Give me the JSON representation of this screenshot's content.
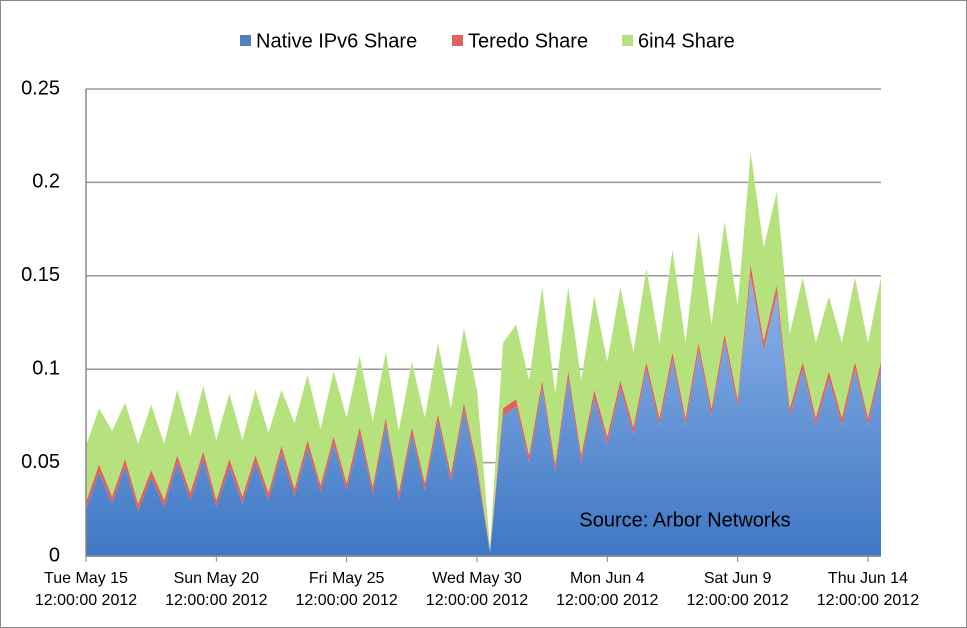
{
  "chart_data": {
    "type": "stacked_area",
    "annotation": "Source: Arbor Networks",
    "categories": [
      "Tue May 15\n12:00:00 2012",
      null,
      null,
      null,
      null,
      null,
      null,
      null,
      null,
      null,
      "Sun May 20\n12:00:00 2012",
      null,
      null,
      null,
      null,
      null,
      null,
      null,
      null,
      null,
      "Fri May 25\n12:00:00 2012",
      null,
      null,
      null,
      null,
      null,
      null,
      null,
      null,
      null,
      "Wed May 30\n12:00:00 2012",
      null,
      null,
      null,
      null,
      null,
      null,
      null,
      null,
      null,
      "Mon Jun  4\n12:00:00 2012",
      null,
      null,
      null,
      null,
      null,
      null,
      null,
      null,
      null,
      "Sat Jun  9\n12:00:00 2012",
      null,
      null,
      null,
      null,
      null,
      null,
      null,
      null,
      null,
      "Thu Jun 14\n12:00:00 2012",
      null
    ],
    "series": [
      {
        "name": "Native IPv6 Share",
        "color": "#4f81bd",
        "values": [
          0.025,
          0.045,
          0.028,
          0.048,
          0.024,
          0.042,
          0.026,
          0.05,
          0.03,
          0.052,
          0.026,
          0.048,
          0.028,
          0.05,
          0.03,
          0.055,
          0.032,
          0.058,
          0.034,
          0.06,
          0.035,
          0.065,
          0.033,
          0.07,
          0.03,
          0.065,
          0.035,
          0.072,
          0.04,
          0.078,
          0.045,
          0.002,
          0.075,
          0.08,
          0.05,
          0.09,
          0.045,
          0.095,
          0.05,
          0.085,
          0.06,
          0.09,
          0.065,
          0.1,
          0.07,
          0.105,
          0.07,
          0.11,
          0.075,
          0.115,
          0.08,
          0.15,
          0.11,
          0.14,
          0.075,
          0.1,
          0.07,
          0.095,
          0.07,
          0.1,
          0.07,
          0.1
        ]
      },
      {
        "name": "Teredo Share",
        "color": "#e0625c",
        "values": [
          0.004,
          0.004,
          0.004,
          0.004,
          0.004,
          0.004,
          0.004,
          0.004,
          0.004,
          0.004,
          0.004,
          0.004,
          0.004,
          0.004,
          0.004,
          0.004,
          0.004,
          0.004,
          0.004,
          0.004,
          0.004,
          0.004,
          0.004,
          0.004,
          0.004,
          0.004,
          0.004,
          0.004,
          0.004,
          0.004,
          0.004,
          0.001,
          0.004,
          0.004,
          0.004,
          0.004,
          0.004,
          0.004,
          0.004,
          0.004,
          0.004,
          0.004,
          0.004,
          0.004,
          0.004,
          0.004,
          0.004,
          0.004,
          0.004,
          0.004,
          0.004,
          0.006,
          0.005,
          0.005,
          0.004,
          0.004,
          0.004,
          0.004,
          0.004,
          0.004,
          0.004,
          0.004
        ]
      },
      {
        "name": "6in4 Share",
        "color": "#b5e27d",
        "values": [
          0.03,
          0.03,
          0.035,
          0.03,
          0.032,
          0.035,
          0.03,
          0.035,
          0.03,
          0.035,
          0.032,
          0.035,
          0.03,
          0.035,
          0.032,
          0.03,
          0.035,
          0.035,
          0.03,
          0.035,
          0.035,
          0.038,
          0.035,
          0.035,
          0.033,
          0.035,
          0.035,
          0.038,
          0.035,
          0.04,
          0.04,
          0.002,
          0.035,
          0.04,
          0.04,
          0.05,
          0.038,
          0.045,
          0.04,
          0.05,
          0.04,
          0.05,
          0.04,
          0.05,
          0.04,
          0.055,
          0.04,
          0.06,
          0.045,
          0.06,
          0.05,
          0.06,
          0.05,
          0.05,
          0.04,
          0.045,
          0.04,
          0.04,
          0.04,
          0.045,
          0.04,
          0.045
        ]
      }
    ],
    "ylim": [
      0,
      0.25
    ],
    "yticks": [
      0,
      0.05,
      0.1,
      0.15,
      0.2,
      0.25
    ],
    "grid": true,
    "legend": "top"
  }
}
